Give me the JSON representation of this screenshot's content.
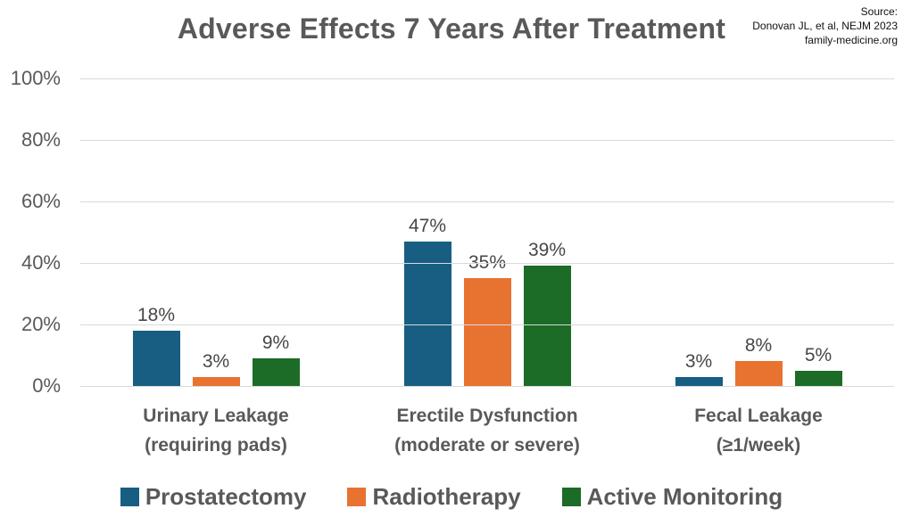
{
  "title": "Adverse Effects 7 Years After Treatment",
  "source": {
    "lines": [
      "Source:",
      "Donovan JL, et al, NEJM 2023",
      "family-medicine.org"
    ]
  },
  "colors": {
    "prostatectomy": "#175E82",
    "radiotherapy": "#E87331",
    "active_monitoring": "#1C6B26",
    "gridline": "#D9D9D9",
    "text_gray": "#595959"
  },
  "chart_data": {
    "type": "bar",
    "title": "Adverse Effects 7 Years After Treatment",
    "xlabel": "",
    "ylabel": "",
    "ylim": [
      0,
      100
    ],
    "grid": true,
    "legend_position": "bottom",
    "value_suffix": "%",
    "y_ticks": [
      "0%",
      "20%",
      "40%",
      "60%",
      "80%",
      "100%"
    ],
    "categories": [
      [
        "Urinary Leakage",
        "(requiring pads)"
      ],
      [
        "Erectile Dysfunction",
        "(moderate or severe)"
      ],
      [
        "Fecal Leakage",
        "(≥1/week)"
      ]
    ],
    "series": [
      {
        "name": "Prostatectomy",
        "color": "#175E82",
        "values": [
          18,
          47,
          3
        ]
      },
      {
        "name": "Radiotherapy",
        "color": "#E87331",
        "values": [
          3,
          35,
          8
        ]
      },
      {
        "name": "Active Monitoring",
        "color": "#1C6B26",
        "values": [
          9,
          39,
          5
        ]
      }
    ]
  }
}
